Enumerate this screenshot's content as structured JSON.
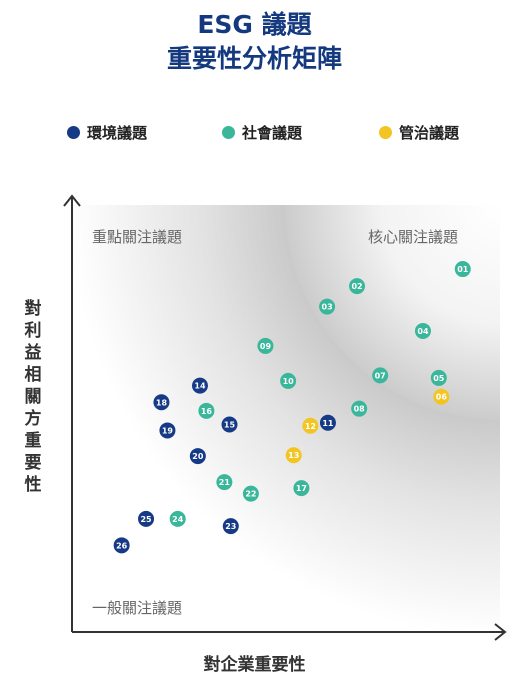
{
  "chart_data": {
    "type": "scatter",
    "title": [
      "ESG 議題",
      "重要性分析矩陣"
    ],
    "xlabel": "對企業重要性",
    "ylabel": "對利益相關方重要性",
    "zones": [
      "核心關注議題",
      "重點關注議題",
      "一般關注議題"
    ],
    "categories": [
      {
        "name": "環境議題",
        "color": "#163a85"
      },
      {
        "name": "社會議題",
        "color": "#3ab79b"
      },
      {
        "name": "管治議題",
        "color": "#f2c522"
      }
    ],
    "xlim": [
      0,
      100
    ],
    "ylim": [
      0,
      100
    ],
    "points": [
      {
        "id": "01",
        "cat": 1,
        "x": 91.3,
        "y": 85.0
      },
      {
        "id": "02",
        "cat": 1,
        "x": 66.6,
        "y": 81.0
      },
      {
        "id": "03",
        "cat": 1,
        "x": 59.6,
        "y": 76.2
      },
      {
        "id": "04",
        "cat": 1,
        "x": 82.0,
        "y": 70.5
      },
      {
        "id": "05",
        "cat": 1,
        "x": 85.7,
        "y": 59.5
      },
      {
        "id": "06",
        "cat": 2,
        "x": 86.3,
        "y": 55.1
      },
      {
        "id": "07",
        "cat": 1,
        "x": 72.0,
        "y": 60.1
      },
      {
        "id": "08",
        "cat": 1,
        "x": 67.1,
        "y": 52.3
      },
      {
        "id": "09",
        "cat": 1,
        "x": 45.2,
        "y": 67.0
      },
      {
        "id": "10",
        "cat": 1,
        "x": 50.5,
        "y": 58.8
      },
      {
        "id": "11",
        "cat": 0,
        "x": 59.8,
        "y": 49.0
      },
      {
        "id": "12",
        "cat": 2,
        "x": 55.7,
        "y": 48.3
      },
      {
        "id": "13",
        "cat": 2,
        "x": 51.8,
        "y": 41.4
      },
      {
        "id": "14",
        "cat": 0,
        "x": 29.9,
        "y": 57.7
      },
      {
        "id": "15",
        "cat": 0,
        "x": 36.8,
        "y": 48.6
      },
      {
        "id": "16",
        "cat": 1,
        "x": 31.4,
        "y": 51.8
      },
      {
        "id": "17",
        "cat": 1,
        "x": 53.6,
        "y": 33.7
      },
      {
        "id": "18",
        "cat": 0,
        "x": 20.9,
        "y": 53.8
      },
      {
        "id": "19",
        "cat": 0,
        "x": 22.3,
        "y": 47.2
      },
      {
        "id": "20",
        "cat": 0,
        "x": 29.4,
        "y": 41.2
      },
      {
        "id": "21",
        "cat": 1,
        "x": 35.6,
        "y": 35.1
      },
      {
        "id": "22",
        "cat": 1,
        "x": 41.8,
        "y": 32.4
      },
      {
        "id": "23",
        "cat": 0,
        "x": 37.1,
        "y": 24.8
      },
      {
        "id": "24",
        "cat": 1,
        "x": 24.7,
        "y": 26.5
      },
      {
        "id": "25",
        "cat": 0,
        "x": 17.3,
        "y": 26.5
      },
      {
        "id": "26",
        "cat": 0,
        "x": 11.6,
        "y": 20.3
      }
    ]
  }
}
